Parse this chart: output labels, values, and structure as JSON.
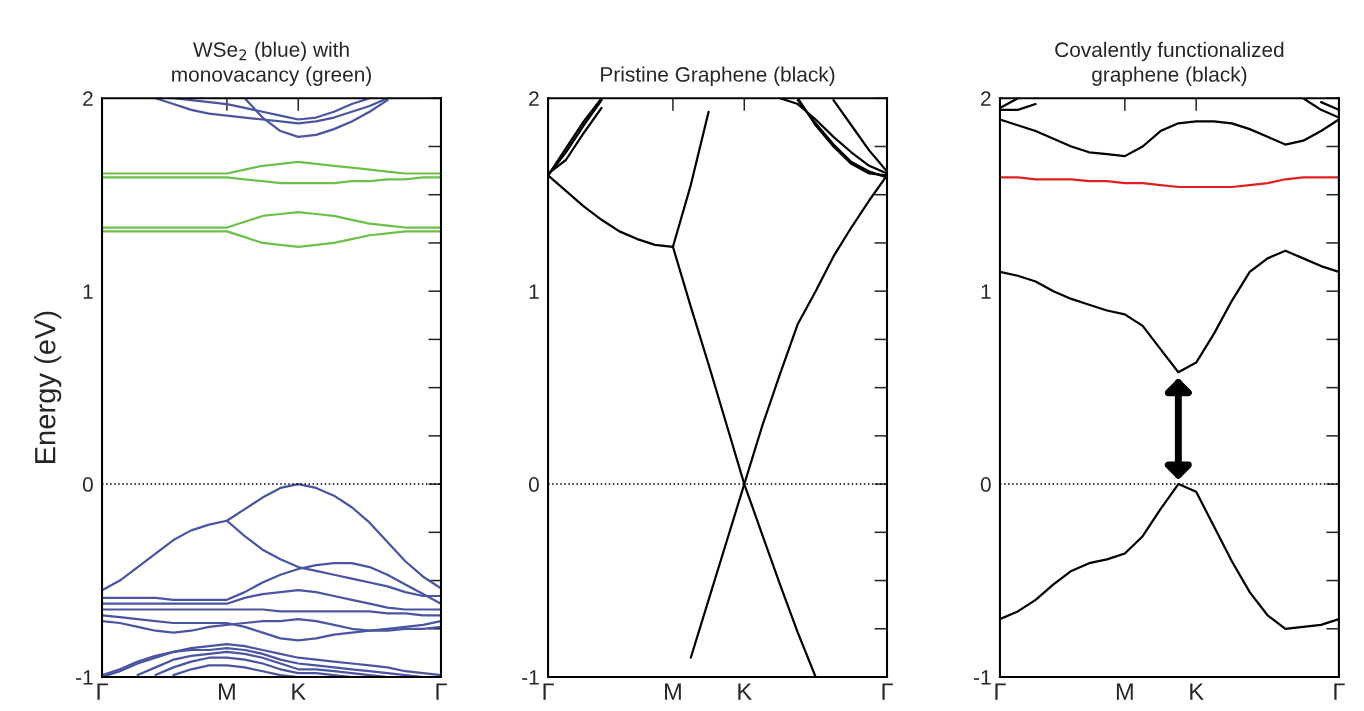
{
  "chart_data": [
    {
      "type": "line",
      "title": "WSe$_{2}$ (blue) with\nmonovacancy (green)",
      "ylabel": "Energy (eV)",
      "categories": [
        "Γ",
        null,
        null,
        null,
        null,
        null,
        null,
        "M",
        null,
        null,
        null,
        "K",
        null,
        null,
        null,
        null,
        null,
        null,
        null,
        "Γ"
      ],
      "ylim": [
        -1,
        2
      ],
      "yticks": [
        -1,
        {
          "value": -0.75,
          "label": null
        },
        {
          "value": -0.5,
          "label": null
        },
        {
          "value": -0.25,
          "label": null
        },
        0,
        {
          "value": 0.25,
          "label": null
        },
        {
          "value": 0.5,
          "label": null
        },
        {
          "value": 0.75,
          "label": null
        },
        1,
        {
          "value": 1.25,
          "label": null
        },
        {
          "value": 1.5,
          "label": null
        },
        {
          "value": 1.75,
          "label": null
        },
        2
      ],
      "ref_lines": [
        {
          "axis": "y",
          "value": 0,
          "color": "#000000",
          "line_style": "dotted"
        }
      ],
      "line_style": "solid",
      "series": [
        {
          "color": "#6cc04a",
          "values": [
            1.61,
            1.61,
            1.61,
            1.61,
            1.61,
            1.61,
            1.61,
            1.61,
            1.63,
            1.65,
            1.66,
            1.67,
            1.66,
            1.65,
            1.64,
            1.63,
            1.62,
            1.61,
            1.61,
            1.61
          ]
        },
        {
          "color": "#6cc04a",
          "values": [
            1.59,
            1.59,
            1.59,
            1.59,
            1.59,
            1.59,
            1.59,
            1.59,
            1.58,
            1.57,
            1.56,
            1.56,
            1.56,
            1.56,
            1.57,
            1.57,
            1.58,
            1.58,
            1.59,
            1.59
          ]
        },
        {
          "color": "#6cc04a",
          "values": [
            1.33,
            1.33,
            1.33,
            1.33,
            1.33,
            1.33,
            1.33,
            1.33,
            1.36,
            1.39,
            1.4,
            1.41,
            1.4,
            1.39,
            1.37,
            1.35,
            1.34,
            1.33,
            1.33,
            1.33
          ]
        },
        {
          "color": "#6cc04a",
          "values": [
            1.31,
            1.31,
            1.31,
            1.31,
            1.31,
            1.31,
            1.31,
            1.31,
            1.28,
            1.25,
            1.24,
            1.23,
            1.24,
            1.25,
            1.27,
            1.29,
            1.3,
            1.31,
            1.31,
            1.31
          ]
        },
        {
          "color": "#4a55a2",
          "values": [
            null,
            null,
            null,
            null,
            2.0,
            1.99,
            1.98,
            1.97,
            1.95,
            1.93,
            1.91,
            1.89,
            1.9,
            1.93,
            1.97,
            2.0,
            null,
            null,
            null,
            null
          ]
        },
        {
          "color": "#4a55a2",
          "values": [
            null,
            null,
            null,
            2.0,
            1.97,
            1.94,
            1.92,
            1.91,
            1.9,
            1.89,
            1.88,
            1.87,
            1.88,
            1.9,
            1.93,
            1.96,
            2.0,
            null,
            null,
            null
          ]
        },
        {
          "color": "#4a55a2",
          "values": [
            null,
            null,
            null,
            null,
            null,
            null,
            null,
            null,
            2.0,
            1.9,
            1.83,
            1.8,
            1.81,
            1.84,
            1.88,
            1.93,
            1.99,
            null,
            null,
            null
          ]
        },
        {
          "color": "#4a55a2",
          "values": [
            -0.55,
            -0.5,
            -0.43,
            -0.36,
            -0.29,
            -0.24,
            -0.21,
            -0.19,
            -0.13,
            -0.07,
            -0.02,
            0.0,
            -0.02,
            -0.06,
            -0.12,
            -0.2,
            -0.3,
            -0.4,
            -0.48,
            -0.54
          ]
        },
        {
          "color": "#4a55a2",
          "values": [
            null,
            null,
            null,
            null,
            null,
            null,
            null,
            -0.19,
            -0.27,
            -0.34,
            -0.39,
            -0.43,
            -0.45,
            -0.47,
            -0.49,
            -0.51,
            -0.53,
            -0.56,
            -0.58,
            -0.58
          ]
        },
        {
          "color": "#4a55a2",
          "values": [
            -0.59,
            -0.59,
            -0.59,
            -0.59,
            -0.6,
            -0.6,
            -0.6,
            -0.6,
            -0.56,
            -0.51,
            -0.47,
            -0.44,
            -0.42,
            -0.41,
            -0.41,
            -0.43,
            -0.47,
            -0.52,
            -0.57,
            -0.62
          ]
        },
        {
          "color": "#4a55a2",
          "values": [
            -0.62,
            -0.62,
            -0.62,
            -0.62,
            -0.62,
            -0.62,
            -0.62,
            -0.62,
            -0.59,
            -0.57,
            -0.56,
            -0.55,
            -0.56,
            -0.58,
            -0.6,
            -0.62,
            -0.64,
            -0.65,
            -0.65,
            -0.65
          ]
        },
        {
          "color": "#4a55a2",
          "values": [
            -0.65,
            -0.65,
            -0.65,
            -0.65,
            -0.65,
            -0.65,
            -0.65,
            -0.65,
            -0.65,
            -0.65,
            -0.66,
            -0.66,
            -0.66,
            -0.66,
            -0.66,
            -0.66,
            -0.67,
            -0.67,
            -0.68,
            -0.68
          ]
        },
        {
          "color": "#4a55a2",
          "values": [
            -0.71,
            -0.72,
            -0.74,
            -0.76,
            -0.77,
            -0.76,
            -0.74,
            -0.73,
            -0.72,
            -0.71,
            -0.71,
            -0.7,
            -0.71,
            -0.73,
            -0.75,
            -0.76,
            -0.76,
            -0.75,
            -0.75,
            -0.74
          ]
        },
        {
          "color": "#4a55a2",
          "values": [
            -0.68,
            -0.69,
            -0.7,
            -0.71,
            -0.72,
            -0.72,
            -0.72,
            -0.72,
            -0.74,
            -0.77,
            -0.8,
            -0.81,
            -0.8,
            -0.78,
            -0.77,
            -0.76,
            -0.75,
            -0.74,
            -0.73,
            -0.71
          ]
        },
        {
          "color": "#4a55a2",
          "values": [
            -1.0,
            -0.97,
            -0.93,
            -0.9,
            -0.87,
            -0.85,
            -0.84,
            -0.83,
            -0.84,
            -0.86,
            -0.88,
            -0.9,
            -0.91,
            -0.92,
            -0.93,
            -0.94,
            -0.95,
            -0.97,
            -0.98,
            -0.99
          ]
        },
        {
          "color": "#4a55a2",
          "values": [
            -0.99,
            -0.96,
            -0.92,
            -0.89,
            -0.87,
            -0.86,
            -0.86,
            -0.85,
            -0.86,
            -0.88,
            -0.91,
            -0.93,
            -0.94,
            -0.95,
            -0.96,
            -0.97,
            -0.98,
            -0.99,
            -1.0,
            null
          ]
        },
        {
          "color": "#4a55a2",
          "values": [
            null,
            null,
            -0.99,
            -0.95,
            -0.91,
            -0.89,
            -0.88,
            -0.87,
            -0.88,
            -0.9,
            -0.93,
            -0.96,
            -0.96,
            -0.97,
            -0.98,
            -0.99,
            -1.0,
            null,
            null,
            null
          ]
        },
        {
          "color": "#4a55a2",
          "values": [
            null,
            null,
            null,
            -0.99,
            -0.95,
            -0.92,
            -0.9,
            -0.9,
            -0.91,
            -0.93,
            -0.96,
            -0.98,
            -0.98,
            -0.99,
            -1.0,
            null,
            null,
            null,
            null,
            null
          ]
        },
        {
          "color": "#4a55a2",
          "values": [
            null,
            null,
            null,
            null,
            -0.99,
            -0.96,
            -0.94,
            -0.94,
            -0.95,
            -0.97,
            -0.99,
            -1.0,
            -1.0,
            null,
            null,
            null,
            null,
            null,
            null,
            null
          ]
        }
      ]
    },
    {
      "type": "line",
      "title": "Pristine Graphene (black)",
      "categories": [
        "Γ",
        null,
        null,
        null,
        null,
        null,
        null,
        "M",
        null,
        null,
        null,
        "K",
        null,
        null,
        null,
        null,
        null,
        null,
        null,
        "Γ"
      ],
      "ylim": [
        -1,
        2
      ],
      "yticks": [
        -1,
        {
          "value": -0.75,
          "label": null
        },
        {
          "value": -0.5,
          "label": null
        },
        {
          "value": -0.25,
          "label": null
        },
        0,
        {
          "value": 0.25,
          "label": null
        },
        {
          "value": 0.5,
          "label": null
        },
        {
          "value": 0.75,
          "label": null
        },
        1,
        {
          "value": 1.25,
          "label": null
        },
        {
          "value": 1.5,
          "label": null
        },
        {
          "value": 1.75,
          "label": null
        },
        2
      ],
      "ref_lines": [
        {
          "axis": "y",
          "value": 0,
          "color": "#000000",
          "line_style": "dotted"
        }
      ],
      "line_style": "solid",
      "series": [
        {
          "color": "#000000",
          "values": [
            1.6,
            1.52,
            1.44,
            1.37,
            1.31,
            1.27,
            1.24,
            1.23,
            0.92,
            0.62,
            0.31,
            0.0,
            -0.26,
            -0.52,
            -0.77,
            -1.0,
            null,
            null,
            null,
            null
          ]
        },
        {
          "color": "#000000",
          "values": [
            null,
            null,
            null,
            null,
            null,
            null,
            null,
            1.23,
            1.55,
            1.93,
            null,
            null,
            null,
            null,
            null,
            null,
            null,
            null,
            null,
            null
          ]
        },
        {
          "color": "#000000",
          "values": [
            null,
            null,
            null,
            null,
            null,
            null,
            null,
            null,
            -0.9,
            -0.6,
            -0.3,
            0.0,
            0.3,
            0.57,
            0.83,
            1.0,
            1.18,
            1.33,
            1.47,
            1.6
          ]
        },
        {
          "color": "#000000",
          "values": [
            1.6,
            1.74,
            1.88,
            2.0,
            null,
            null,
            null,
            null,
            null,
            null,
            null,
            null,
            null,
            null,
            null,
            null,
            null,
            null,
            null,
            null
          ]
        },
        {
          "color": "#000000",
          "values": [
            1.61,
            1.68,
            1.82,
            1.95,
            null,
            null,
            null,
            null,
            null,
            null,
            null,
            null,
            null,
            null,
            null,
            null,
            null,
            null,
            null,
            null
          ]
        },
        {
          "color": "#000000",
          "values": [
            1.6,
            1.72,
            1.86,
            1.99,
            null,
            null,
            null,
            null,
            null,
            null,
            null,
            null,
            null,
            null,
            null,
            null,
            null,
            null,
            null,
            null
          ]
        },
        {
          "color": "#000000",
          "values": [
            null,
            null,
            null,
            null,
            null,
            null,
            null,
            null,
            null,
            null,
            null,
            null,
            null,
            null,
            2.0,
            1.86,
            1.75,
            1.66,
            1.61,
            1.6
          ]
        },
        {
          "color": "#000000",
          "values": [
            null,
            null,
            null,
            null,
            null,
            null,
            null,
            null,
            null,
            null,
            null,
            null,
            null,
            null,
            1.99,
            1.87,
            1.76,
            1.67,
            1.62,
            1.59
          ]
        },
        {
          "color": "#000000",
          "values": [
            null,
            null,
            null,
            null,
            null,
            null,
            null,
            null,
            null,
            null,
            null,
            null,
            null,
            2.0,
            1.97,
            1.89,
            1.8,
            1.72,
            1.65,
            1.61
          ]
        },
        {
          "color": "#000000",
          "values": [
            null,
            null,
            null,
            null,
            null,
            null,
            null,
            null,
            null,
            null,
            null,
            null,
            null,
            null,
            null,
            null,
            1.99,
            1.86,
            1.73,
            1.62
          ]
        }
      ]
    },
    {
      "type": "line",
      "title": "Covalently functionalized\ngraphene (black)",
      "categories": [
        "Γ",
        null,
        null,
        null,
        null,
        null,
        null,
        "M",
        null,
        null,
        null,
        "K",
        null,
        null,
        null,
        null,
        null,
        null,
        null,
        "Γ"
      ],
      "ylim": [
        -1,
        2
      ],
      "yticks": [
        -1,
        {
          "value": -0.75,
          "label": null
        },
        {
          "value": -0.5,
          "label": null
        },
        {
          "value": -0.25,
          "label": null
        },
        0,
        {
          "value": 0.25,
          "label": null
        },
        {
          "value": 0.5,
          "label": null
        },
        {
          "value": 0.75,
          "label": null
        },
        1,
        {
          "value": 1.25,
          "label": null
        },
        {
          "value": 1.5,
          "label": null
        },
        {
          "value": 1.75,
          "label": null
        },
        2
      ],
      "ref_lines": [
        {
          "axis": "y",
          "value": 0,
          "color": "#000000",
          "line_style": "dotted"
        }
      ],
      "line_style": "solid",
      "series": [
        {
          "color": "#000000",
          "values": [
            1.1,
            1.08,
            1.05,
            1.0,
            0.96,
            0.93,
            0.9,
            0.88,
            0.82,
            0.7,
            0.58,
            0.63,
            0.78,
            0.95,
            1.1,
            1.17,
            1.21,
            1.17,
            1.13,
            1.1
          ]
        },
        {
          "color": "#000000",
          "values": [
            -0.7,
            -0.66,
            -0.6,
            -0.52,
            -0.45,
            -0.41,
            -0.39,
            -0.36,
            -0.27,
            -0.13,
            0.0,
            -0.04,
            -0.22,
            -0.4,
            -0.56,
            -0.68,
            -0.75,
            -0.74,
            -0.73,
            -0.7
          ]
        },
        {
          "color": "#e02020",
          "values": [
            1.59,
            1.59,
            1.58,
            1.58,
            1.58,
            1.57,
            1.57,
            1.56,
            1.56,
            1.55,
            1.54,
            1.54,
            1.54,
            1.54,
            1.55,
            1.56,
            1.58,
            1.59,
            1.59,
            1.59
          ]
        },
        {
          "color": "#000000",
          "values": [
            1.89,
            1.86,
            1.83,
            1.79,
            1.75,
            1.72,
            1.71,
            1.7,
            1.75,
            1.83,
            1.87,
            1.88,
            1.88,
            1.87,
            1.84,
            1.8,
            1.76,
            1.78,
            1.83,
            1.89
          ]
        },
        {
          "color": "#000000",
          "values": [
            1.94,
            1.94,
            1.97,
            null,
            null,
            null,
            null,
            null,
            null,
            null,
            null,
            null,
            null,
            null,
            null,
            null,
            null,
            null,
            null,
            null
          ]
        },
        {
          "color": "#000000",
          "values": [
            1.95,
            2.0,
            null,
            null,
            null,
            null,
            null,
            null,
            null,
            null,
            null,
            null,
            null,
            null,
            null,
            null,
            null,
            null,
            null,
            null
          ]
        },
        {
          "color": "#000000",
          "values": [
            null,
            null,
            null,
            null,
            null,
            null,
            null,
            null,
            null,
            null,
            null,
            null,
            null,
            null,
            null,
            null,
            null,
            2.0,
            1.94,
            1.9
          ]
        },
        {
          "color": "#000000",
          "values": [
            null,
            null,
            null,
            null,
            null,
            null,
            null,
            null,
            null,
            null,
            null,
            null,
            null,
            null,
            null,
            null,
            null,
            null,
            1.98,
            1.94
          ]
        }
      ]
    }
  ]
}
